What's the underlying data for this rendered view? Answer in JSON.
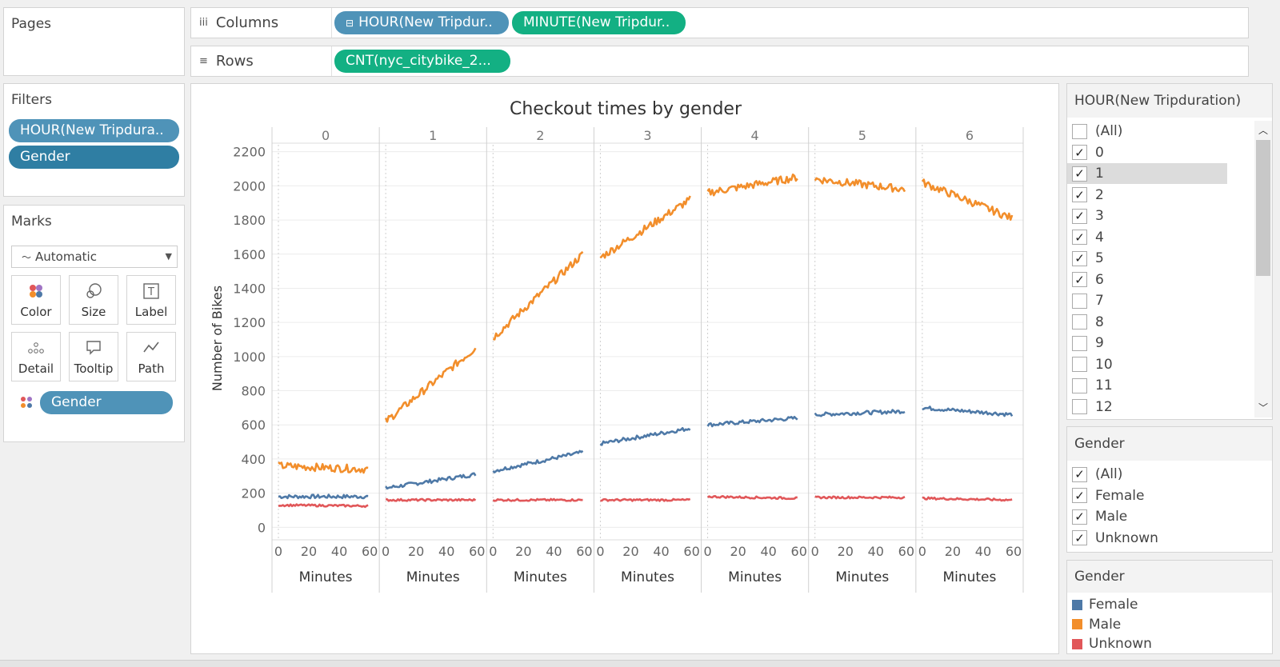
{
  "pages": {
    "title": "Pages"
  },
  "columns_shelf": {
    "label": "Columns",
    "pills": [
      "HOUR(New Tripdur..",
      "MINUTE(New Tripdur.."
    ]
  },
  "rows_shelf": {
    "label": "Rows",
    "pills": [
      "CNT(nyc_citybike_2..."
    ]
  },
  "filters": {
    "title": "Filters",
    "pills": [
      "HOUR(New Tripdura..",
      "Gender"
    ]
  },
  "marks": {
    "title": "Marks",
    "mark_type": "Automatic",
    "buttons": [
      "Color",
      "Size",
      "Label",
      "Detail",
      "Tooltip",
      "Path"
    ],
    "color_pill": "Gender"
  },
  "hour_filter": {
    "title": "HOUR(New Tripduration)",
    "items": [
      {
        "label": "(All)",
        "checked": false
      },
      {
        "label": "0",
        "checked": true
      },
      {
        "label": "1",
        "checked": true
      },
      {
        "label": "2",
        "checked": true
      },
      {
        "label": "3",
        "checked": true
      },
      {
        "label": "4",
        "checked": true
      },
      {
        "label": "5",
        "checked": true
      },
      {
        "label": "6",
        "checked": true
      },
      {
        "label": "7",
        "checked": false
      },
      {
        "label": "8",
        "checked": false
      },
      {
        "label": "9",
        "checked": false
      },
      {
        "label": "10",
        "checked": false
      },
      {
        "label": "11",
        "checked": false
      },
      {
        "label": "12",
        "checked": false
      }
    ]
  },
  "gender_filter": {
    "title": "Gender",
    "items": [
      {
        "label": "(All)",
        "checked": true
      },
      {
        "label": "Female",
        "checked": true
      },
      {
        "label": "Male",
        "checked": true
      },
      {
        "label": "Unknown",
        "checked": true
      }
    ]
  },
  "gender_legend": {
    "title": "Gender",
    "items": [
      {
        "label": "Female",
        "color": "#4e79a7"
      },
      {
        "label": "Male",
        "color": "#f28e2b"
      },
      {
        "label": "Unknown",
        "color": "#e15759"
      }
    ]
  },
  "chart_data": {
    "type": "line",
    "title": "Checkout times by gender",
    "ylabel": "Number of Bikes",
    "xlabel": "Minutes",
    "ylim": [
      -50,
      2250
    ],
    "yticks": [
      0,
      200,
      400,
      600,
      800,
      1000,
      1200,
      1400,
      1600,
      1800,
      2000,
      2200
    ],
    "xticks": [
      "0",
      "20",
      "40",
      "60"
    ],
    "panels": [
      "0",
      "1",
      "2",
      "3",
      "4",
      "5",
      "6"
    ],
    "series": [
      {
        "name": "Female",
        "color": "#4e79a7",
        "points": [
          [
            0,
            0,
            180
          ],
          [
            0,
            59,
            180
          ],
          [
            1,
            0,
            230
          ],
          [
            1,
            59,
            310
          ],
          [
            2,
            0,
            330
          ],
          [
            2,
            59,
            440
          ],
          [
            3,
            0,
            490
          ],
          [
            3,
            59,
            580
          ],
          [
            4,
            0,
            600
          ],
          [
            4,
            59,
            640
          ],
          [
            5,
            0,
            660
          ],
          [
            5,
            59,
            680
          ],
          [
            6,
            0,
            700
          ],
          [
            6,
            59,
            660
          ]
        ]
      },
      {
        "name": "Male",
        "color": "#f28e2b",
        "points": [
          [
            0,
            0,
            360
          ],
          [
            0,
            59,
            340
          ],
          [
            1,
            0,
            620
          ],
          [
            1,
            59,
            1050
          ],
          [
            2,
            0,
            1110
          ],
          [
            2,
            59,
            1600
          ],
          [
            3,
            0,
            1580
          ],
          [
            3,
            59,
            1920
          ],
          [
            4,
            0,
            1960
          ],
          [
            4,
            59,
            2050
          ],
          [
            5,
            0,
            2040
          ],
          [
            5,
            59,
            1980
          ],
          [
            6,
            0,
            2020
          ],
          [
            6,
            59,
            1810
          ]
        ]
      },
      {
        "name": "Unknown",
        "color": "#e15759",
        "points": [
          [
            0,
            0,
            130
          ],
          [
            0,
            59,
            125
          ],
          [
            1,
            0,
            160
          ],
          [
            1,
            59,
            160
          ],
          [
            2,
            0,
            160
          ],
          [
            2,
            59,
            160
          ],
          [
            3,
            0,
            160
          ],
          [
            3,
            59,
            160
          ],
          [
            4,
            0,
            180
          ],
          [
            4,
            59,
            170
          ],
          [
            5,
            0,
            175
          ],
          [
            5,
            59,
            175
          ],
          [
            6,
            0,
            170
          ],
          [
            6,
            59,
            160
          ]
        ]
      }
    ]
  }
}
